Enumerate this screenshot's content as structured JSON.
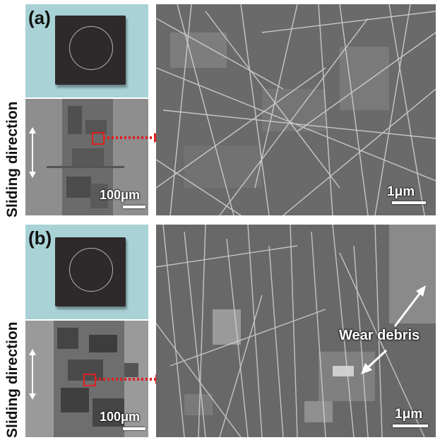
{
  "panel_a": {
    "label": "(a)",
    "caption": "Sliding direction",
    "optical_scale": "100μm",
    "sem_scale": "1μm"
  },
  "panel_b": {
    "label": "(b)",
    "caption": "Sliding direction",
    "optical_scale": "100μm",
    "sem_scale": "1μm",
    "annotation": "Wear debris"
  },
  "colors": {
    "arrow_red": "#e02020",
    "photo_background": "#a9d2d6",
    "sample": "#2e2a2c"
  }
}
